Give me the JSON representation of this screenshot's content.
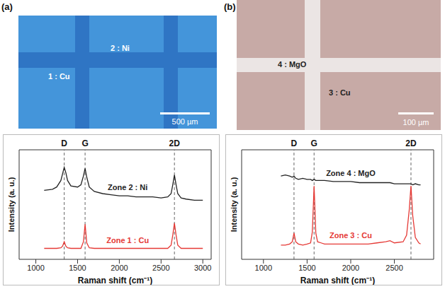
{
  "panels": [
    {
      "letter": "(a)",
      "labels": [
        "1 : Cu",
        "2 : Ni"
      ],
      "scale_bar": "500 µm"
    },
    {
      "letter": "(b)",
      "labels": [
        "4 : MgO",
        "3 : Cu"
      ],
      "scale_bar": "100 µm"
    }
  ],
  "chart_data": [
    {
      "type": "line",
      "x_label": "Raman shift (cm⁻¹)",
      "y_label": "Intensity (a. u.)",
      "xlim": [
        800,
        3100
      ],
      "xticks": [
        1000,
        1500,
        2000,
        2500,
        3000
      ],
      "ylim": [
        0,
        10
      ],
      "tick_labels": "x",
      "grid": false,
      "annotations": [
        {
          "text": "D",
          "x": 1340
        },
        {
          "text": "G",
          "x": 1590
        },
        {
          "text": "2D",
          "x": 2660
        }
      ],
      "x": [
        1100,
        1200,
        1250,
        1300,
        1320,
        1340,
        1360,
        1380,
        1420,
        1500,
        1540,
        1570,
        1590,
        1610,
        1640,
        1700,
        1800,
        1900,
        2000,
        2100,
        2200,
        2300,
        2400,
        2500,
        2580,
        2620,
        2640,
        2660,
        2680,
        2700,
        2740,
        2800,
        2900,
        3000
      ],
      "series": [
        {
          "name": "Zone 2 : Ni",
          "color": "#222222",
          "values": [
            6.3,
            6.4,
            6.6,
            7.2,
            7.8,
            8.4,
            7.9,
            7.2,
            6.7,
            6.6,
            6.8,
            7.6,
            8.3,
            7.5,
            6.6,
            6.2,
            6.0,
            5.9,
            5.8,
            5.8,
            5.7,
            5.7,
            5.7,
            5.6,
            5.7,
            6.0,
            6.8,
            7.7,
            6.8,
            6.0,
            5.6,
            5.5,
            5.4,
            5.4
          ]
        },
        {
          "name": "Zone 1 : Cu",
          "color": "#e53935",
          "values": [
            1.0,
            1.0,
            1.0,
            1.05,
            1.2,
            1.6,
            1.2,
            1.05,
            1.0,
            1.0,
            1.0,
            1.6,
            3.2,
            1.5,
            1.05,
            1.0,
            1.0,
            1.0,
            1.0,
            1.0,
            1.0,
            1.0,
            1.0,
            1.0,
            1.0,
            1.3,
            2.2,
            3.3,
            2.2,
            1.3,
            1.0,
            1.0,
            1.0,
            1.0
          ]
        }
      ]
    },
    {
      "type": "line",
      "x_label": "Raman shift (cm⁻¹)",
      "y_label": "Intensity (a. u.)",
      "xlim": [
        750,
        2950
      ],
      "xticks": [
        1000,
        1500,
        2000,
        2500
      ],
      "ylim": [
        0,
        10
      ],
      "tick_labels": "x",
      "grid": false,
      "annotations": [
        {
          "text": "D",
          "x": 1350
        },
        {
          "text": "G",
          "x": 1580
        },
        {
          "text": "2D",
          "x": 2690
        }
      ],
      "x": [
        1200,
        1250,
        1300,
        1330,
        1350,
        1370,
        1400,
        1450,
        1500,
        1540,
        1560,
        1580,
        1600,
        1620,
        1660,
        1700,
        1800,
        1900,
        2000,
        2100,
        2200,
        2300,
        2400,
        2450,
        2500,
        2600,
        2640,
        2670,
        2690,
        2710,
        2740,
        2780,
        2800
      ],
      "series": [
        {
          "name": "Zone 4 : MgO",
          "color": "#222222",
          "values": [
            7.6,
            7.7,
            7.6,
            7.5,
            7.6,
            7.4,
            7.3,
            7.4,
            7.3,
            7.3,
            7.2,
            7.3,
            7.2,
            7.2,
            7.2,
            7.2,
            7.1,
            7.1,
            7.1,
            7.0,
            7.0,
            7.0,
            7.0,
            7.0,
            6.9,
            6.9,
            6.9,
            6.9,
            6.9,
            6.8,
            6.9,
            6.8,
            6.8
          ]
        },
        {
          "name": "Zone 3 : Cu",
          "color": "#e53935",
          "values": [
            1.3,
            1.3,
            1.4,
            1.6,
            2.4,
            1.6,
            1.4,
            1.3,
            1.4,
            1.5,
            2.5,
            6.7,
            2.4,
            1.6,
            1.5,
            1.4,
            1.4,
            1.4,
            1.4,
            1.4,
            1.4,
            1.5,
            1.6,
            1.7,
            1.5,
            1.6,
            2.2,
            4.5,
            6.7,
            4.0,
            2.0,
            1.5,
            1.4
          ]
        }
      ]
    }
  ]
}
